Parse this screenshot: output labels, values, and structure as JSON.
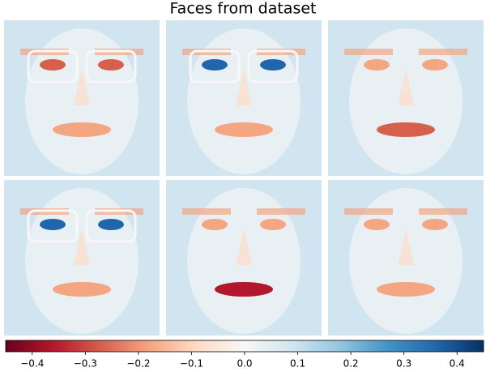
{
  "chart_data": {
    "type": "imagegrid",
    "title": "Faces from dataset",
    "colormap": [
      "#67001f",
      "#b2182b",
      "#d6604d",
      "#f4a582",
      "#fddbc7",
      "#f7f7f7",
      "#d1e5f0",
      "#92c5de",
      "#4393c3",
      "#2166ac",
      "#053061"
    ],
    "clim": [
      -0.45,
      0.45
    ],
    "cticks": [
      {
        "value": -0.4,
        "label": "−0.4"
      },
      {
        "value": -0.3,
        "label": "−0.3"
      },
      {
        "value": -0.2,
        "label": "−0.2"
      },
      {
        "value": -0.1,
        "label": "−0.1"
      },
      {
        "value": 0.0,
        "label": "0.0"
      },
      {
        "value": 0.1,
        "label": "0.1"
      },
      {
        "value": 0.2,
        "label": "0.2"
      },
      {
        "value": 0.3,
        "label": "0.3"
      },
      {
        "value": 0.4,
        "label": "0.4"
      }
    ]
  }
}
